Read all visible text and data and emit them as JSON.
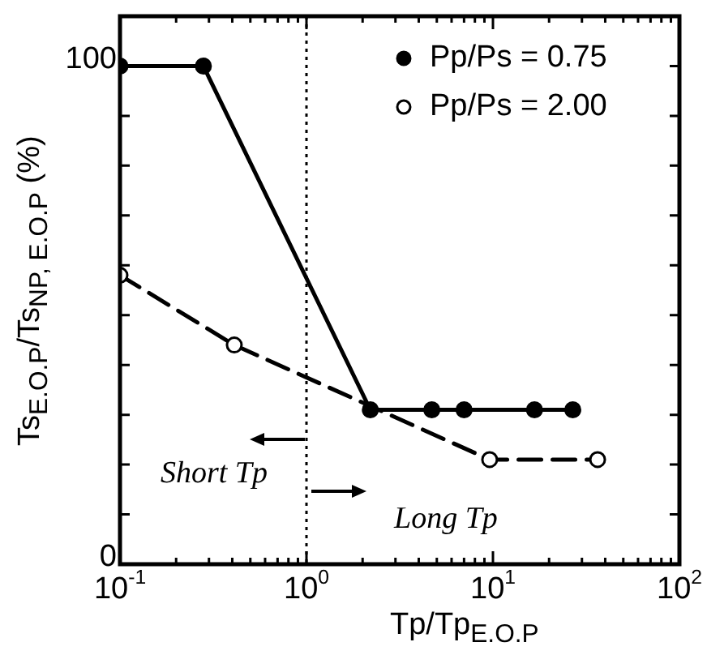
{
  "chart_data": {
    "type": "line",
    "xlabel": "Tp/Tp$_{E.O.P}$",
    "ylabel": "Ts$_{E.O.P}$/Ts$_{NP, E.O.P}$ (%)",
    "log": "x",
    "xlim": [
      0.1,
      100
    ],
    "ylim": [
      0,
      110
    ],
    "xticks": [
      {
        "value": 0.1,
        "label": "10$^{-1}$"
      },
      {
        "value": 1,
        "label": "10$^{0}$"
      },
      {
        "value": 10,
        "label": "10$^{1}$"
      },
      {
        "value": 100,
        "label": "10$^{2}$"
      }
    ],
    "yticks": [
      0,
      {
        "value": 10,
        "label": null
      },
      {
        "value": 20,
        "label": null
      },
      {
        "value": 30,
        "label": null
      },
      {
        "value": 40,
        "label": null
      },
      {
        "value": 50,
        "label": null
      },
      {
        "value": 60,
        "label": null
      },
      {
        "value": 70,
        "label": null
      },
      {
        "value": 80,
        "label": null
      },
      {
        "value": 90,
        "label": null
      },
      100,
      {
        "value": 110,
        "label": null
      }
    ],
    "grid": false,
    "legend": "top right",
    "marker": "circle",
    "series": [
      {
        "name": "Pp/Ps = 0.75",
        "color": "#000000",
        "line_style": "solid",
        "x": [
          0.1,
          0.28,
          2.2,
          4.7,
          7.0,
          16.7,
          26.8
        ],
        "values": [
          100,
          100,
          31,
          31,
          31,
          31,
          31
        ]
      },
      {
        "name": "Pp/Ps = 2.00",
        "color": "#000000",
        "line_style": "dashed",
        "x": [
          0.1,
          0.41,
          9.6,
          36.4
        ],
        "values": [
          58,
          44,
          21,
          21
        ]
      }
    ],
    "ref_lines": [
      {
        "axis": "x",
        "value": 1,
        "line_style": "dotted"
      }
    ],
    "annotations": [
      "Short Tp",
      "Long Tp"
    ]
  }
}
